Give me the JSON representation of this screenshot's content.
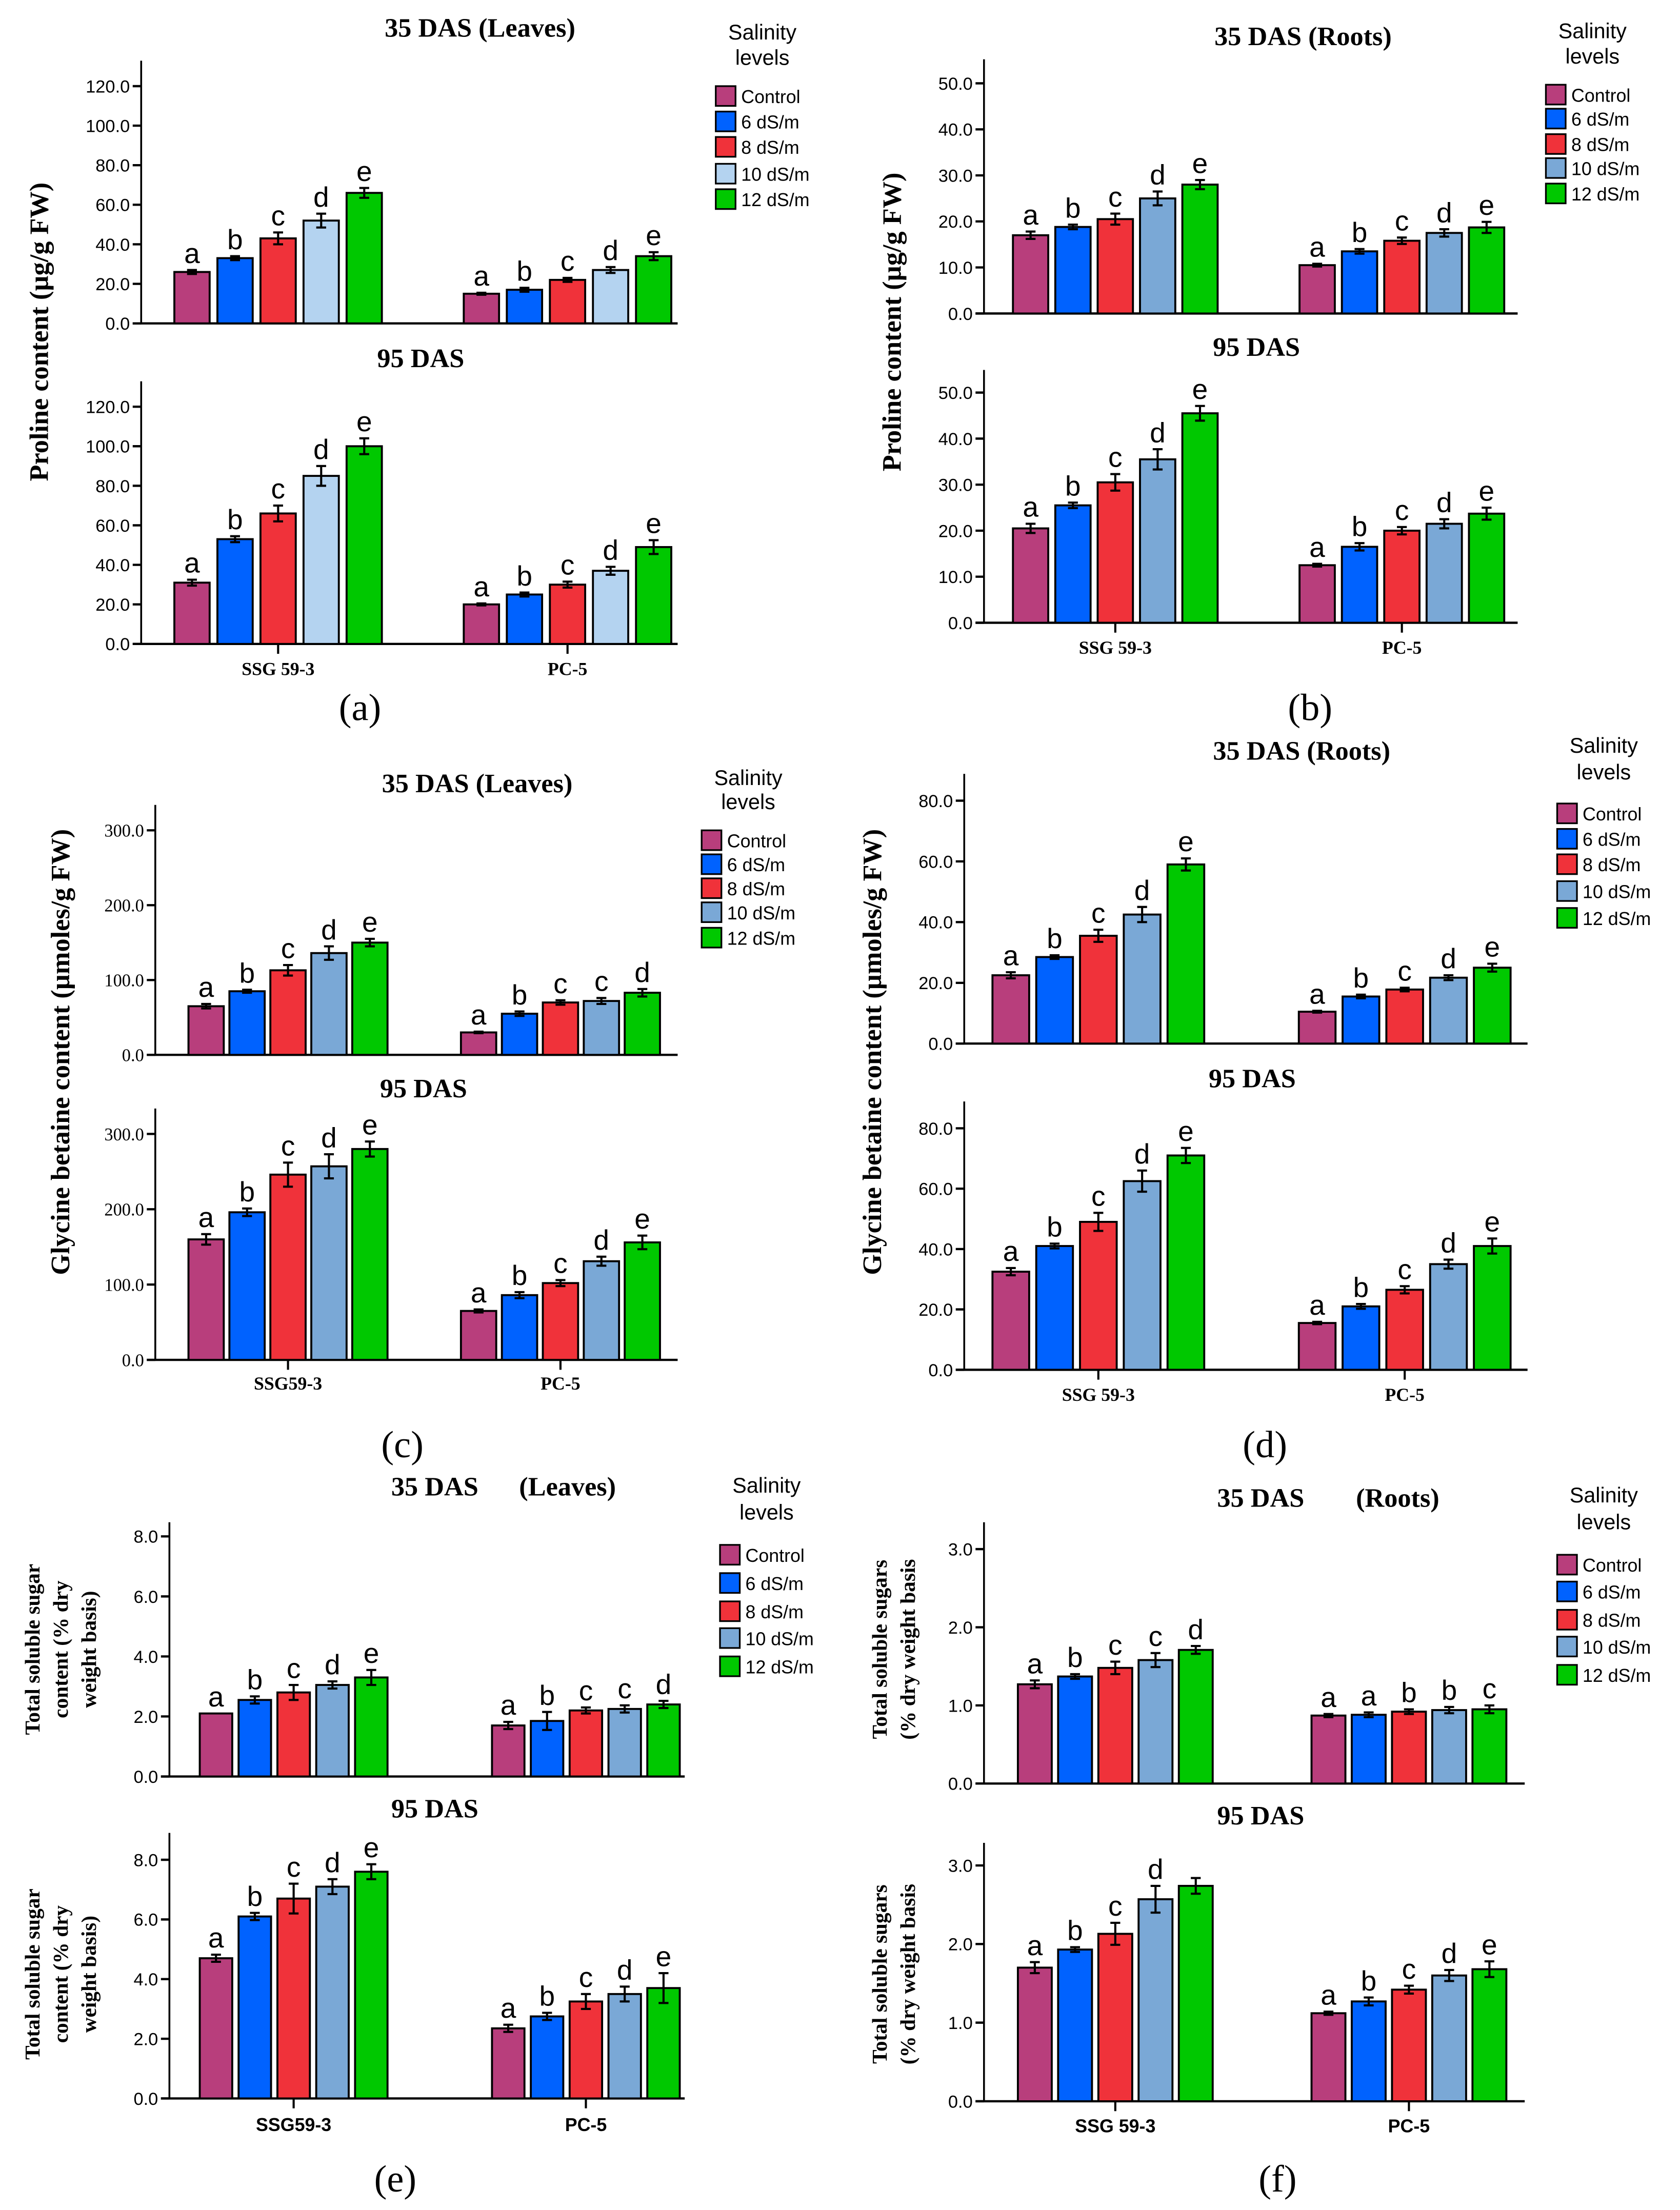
{
  "chart_data": [
    {
      "type": "bar",
      "label": "(a)",
      "ylabel": [
        "Proline content (µg/g FW)"
      ],
      "categories": [
        "SSG 59-3",
        "PC-5"
      ],
      "legend_title": [
        "Salinity",
        "levels"
      ],
      "legend": [
        "Control",
        "6 dS/m",
        "8 dS/m",
        "10 dS/m",
        "12 dS/m"
      ],
      "colors": [
        "#B83E7C",
        "#0062FF",
        "#F0323A",
        "#B4D3F0",
        "#00C800"
      ],
      "charts": [
        {
          "title": "35 DAS  (Leaves)",
          "ticks": [
            "0.0",
            "20.0",
            "40.0",
            "60.0",
            "80.0",
            "100.0",
            "120.0"
          ],
          "tick_values": [
            0,
            20,
            40,
            60,
            80,
            100,
            120
          ],
          "values": [
            [
              26,
              33,
              43,
              52,
              66
            ],
            [
              15,
              17,
              22,
              27,
              34
            ]
          ],
          "err": [
            [
              1,
              1,
              3,
              3.5,
              2.5
            ],
            [
              0.5,
              1,
              1,
              1.5,
              2
            ]
          ],
          "letters": [
            [
              "a",
              "b",
              "c",
              "d",
              "e"
            ],
            [
              "a",
              "b",
              "c",
              "d",
              "e"
            ]
          ]
        },
        {
          "title": "95 DAS",
          "ticks": [
            "0.0",
            "20.0",
            "40.0",
            "60.0",
            "80.0",
            "100.0",
            "120.0"
          ],
          "tick_values": [
            0,
            20,
            40,
            60,
            80,
            100,
            120
          ],
          "values": [
            [
              31,
              53,
              66,
              85,
              100
            ],
            [
              20,
              25,
              30,
              37,
              49
            ]
          ],
          "err": [
            [
              1.5,
              1.5,
              4,
              5,
              4
            ],
            [
              0.5,
              1,
              1.5,
              2,
              3.5
            ]
          ],
          "letters": [
            [
              "a",
              "b",
              "c",
              "d",
              "e"
            ],
            [
              "a",
              "b",
              "c",
              "d",
              "e"
            ]
          ]
        }
      ]
    },
    {
      "type": "bar",
      "label": "(b)",
      "ylabel": [
        "Proline content (µg/g FW)"
      ],
      "categories": [
        "SSG 59-3",
        "PC-5"
      ],
      "legend_title": [
        "Salinity",
        "levels"
      ],
      "legend": [
        "Control",
        "6 dS/m",
        "8 dS/m",
        "10 dS/m",
        "12 dS/m"
      ],
      "colors": [
        "#B83E7C",
        "#0062FF",
        "#F0323A",
        "#7AA8D6",
        "#00C800"
      ],
      "charts": [
        {
          "title": "35 DAS (Roots)",
          "ticks": [
            "0.0",
            "10.0",
            "20.0",
            "30.0",
            "40.0",
            "50.0"
          ],
          "tick_values": [
            0,
            10,
            20,
            30,
            40,
            50
          ],
          "values": [
            [
              17,
              18.8,
              20.5,
              25,
              28
            ],
            [
              10.5,
              13.5,
              15.8,
              17.5,
              18.7
            ]
          ],
          "err": [
            [
              0.8,
              0.5,
              1.2,
              1.5,
              1
            ],
            [
              0.3,
              0.5,
              0.7,
              0.8,
              1.2
            ]
          ],
          "letters": [
            [
              "a",
              "b",
              "c",
              "d",
              "e"
            ],
            [
              "a",
              "b",
              "c",
              "d",
              "e"
            ]
          ]
        },
        {
          "title": "95 DAS",
          "ticks": [
            "0.0",
            "10.0",
            "20.0",
            "30.0",
            "40.0",
            "50.0"
          ],
          "tick_values": [
            0,
            10,
            20,
            30,
            40,
            50
          ],
          "values": [
            [
              20.5,
              25.5,
              30.5,
              35.5,
              45.5
            ],
            [
              12.5,
              16.5,
              20,
              21.5,
              23.7
            ]
          ],
          "err": [
            [
              1,
              0.6,
              1.8,
              2.2,
              1.6
            ],
            [
              0.3,
              0.8,
              0.8,
              1,
              1.3
            ]
          ],
          "letters": [
            [
              "a",
              "b",
              "c",
              "d",
              "e"
            ],
            [
              "a",
              "b",
              "c",
              "d",
              "e"
            ]
          ]
        }
      ]
    },
    {
      "type": "bar",
      "label": "(c)",
      "ylabel": [
        "Glycine betaine content  (µmoles/g FW)"
      ],
      "categories": [
        "SSG59-3",
        "PC-5"
      ],
      "legend_title": [
        "Salinity",
        "levels"
      ],
      "legend": [
        "Control",
        "6 dS/m",
        "8 dS/m",
        "10 dS/m",
        "12 dS/m"
      ],
      "colors": [
        "#B83E7C",
        "#0062FF",
        "#F0323A",
        "#7AA8D6",
        "#00C800"
      ],
      "charts": [
        {
          "title": "35 DAS  (Leaves)",
          "ticks": [
            "0.0",
            "100.0",
            "200.0",
            "300.0"
          ],
          "tick_values": [
            0,
            100,
            200,
            300
          ],
          "values": [
            [
              65,
              85,
              113,
              136,
              150
            ],
            [
              30,
              55,
              70,
              72,
              83
            ]
          ],
          "err": [
            [
              3,
              2,
              7,
              9,
              5
            ],
            [
              1,
              3,
              3,
              4,
              5
            ]
          ],
          "letters": [
            [
              "a",
              "b",
              "c",
              "d",
              "e"
            ],
            [
              "a",
              "b",
              "c",
              "c",
              "d"
            ]
          ]
        },
        {
          "title": "95 DAS",
          "ticks": [
            "0.0",
            "100.0",
            "200.0",
            "300.0"
          ],
          "tick_values": [
            0,
            100,
            200,
            300
          ],
          "values": [
            [
              160,
              196,
              246,
              257,
              280
            ],
            [
              65,
              86,
              102,
              131,
              156
            ]
          ],
          "err": [
            [
              7,
              5,
              16,
              16,
              10
            ],
            [
              2,
              4,
              4,
              6,
              9
            ]
          ],
          "letters": [
            [
              "a",
              "b",
              "c",
              "d",
              "e"
            ],
            [
              "a",
              "b",
              "c",
              "d",
              "e"
            ]
          ]
        }
      ]
    },
    {
      "type": "bar",
      "label": "(d)",
      "ylabel": [
        "Glycine betaine content (µmoles/g FW)"
      ],
      "categories": [
        "SSG 59-3",
        "PC-5"
      ],
      "legend_title": [
        "Salinity",
        "levels"
      ],
      "legend": [
        "Control",
        "6 dS/m",
        "8 dS/m",
        "10 dS/m",
        "12 dS/m"
      ],
      "colors": [
        "#B83E7C",
        "#0062FF",
        "#F0323A",
        "#7AA8D6",
        "#00C800"
      ],
      "charts": [
        {
          "title": "35 DAS (Roots)",
          "ticks": [
            "0.0",
            "20.0",
            "40.0",
            "60.0",
            "80.0"
          ],
          "tick_values": [
            0,
            20,
            40,
            60,
            80
          ],
          "values": [
            [
              22.5,
              28.5,
              35.5,
              42.5,
              59
            ],
            [
              10.5,
              15.5,
              17.8,
              21.7,
              25
            ]
          ],
          "err": [
            [
              1,
              0.6,
              2,
              2.5,
              2
            ],
            [
              0.3,
              0.6,
              0.6,
              0.8,
              1.3
            ]
          ],
          "letters": [
            [
              "a",
              "b",
              "c",
              "d",
              "e"
            ],
            [
              "a",
              "b",
              "c",
              "d",
              "e"
            ]
          ]
        },
        {
          "title": "95 DAS",
          "ticks": [
            "0.0",
            "20.0",
            "40.0",
            "60.0",
            "80.0"
          ],
          "tick_values": [
            0,
            20,
            40,
            60,
            80
          ],
          "values": [
            [
              32.5,
              41,
              49,
              62.5,
              71
            ],
            [
              15.5,
              21,
              26.5,
              35,
              41
            ]
          ],
          "err": [
            [
              1.2,
              0.8,
              3,
              3.5,
              2.5
            ],
            [
              0.4,
              0.8,
              1.2,
              1.5,
              2.5
            ]
          ],
          "letters": [
            [
              "a",
              "b",
              "c",
              "d",
              "e"
            ],
            [
              "a",
              "b",
              "c",
              "d",
              "e"
            ]
          ]
        }
      ]
    },
    {
      "type": "bar",
      "label": "(e)",
      "ylabel": [
        "Total soluble sugar",
        "content (% dry",
        "weight basis)"
      ],
      "categories": [
        "SSG59-3",
        "PC-5"
      ],
      "legend_title": [
        "Salinity",
        "levels"
      ],
      "legend": [
        "Control",
        "6 dS/m",
        "8 dS/m",
        "10 dS/m",
        "12 dS/m"
      ],
      "colors": [
        "#B83E7C",
        "#0062FF",
        "#F0323A",
        "#7AA8D6",
        "#00C800"
      ],
      "charts": [
        {
          "title": "35 DAS",
          "title_part2": "(Leaves)",
          "ticks": [
            "0.0",
            "2.0",
            "4.0",
            "6.0",
            "8.0"
          ],
          "tick_values": [
            0,
            2,
            4,
            6,
            8
          ],
          "values": [
            [
              2.1,
              2.55,
              2.8,
              3.05,
              3.3
            ],
            [
              1.7,
              1.85,
              2.2,
              2.25,
              2.4
            ]
          ],
          "err": [
            [
              0,
              0.12,
              0.25,
              0.12,
              0.25
            ],
            [
              0.12,
              0.3,
              0.1,
              0.12,
              0.12
            ]
          ],
          "letters": [
            [
              "a",
              "b",
              "c",
              "d",
              "e"
            ],
            [
              "a",
              "b",
              "c",
              "c",
              "d"
            ]
          ]
        },
        {
          "title": "95 DAS",
          "ticks": [
            "0.0",
            "2.0",
            "4.0",
            "6.0",
            "8.0"
          ],
          "tick_values": [
            0,
            2,
            4,
            6,
            8
          ],
          "values": [
            [
              4.7,
              6.1,
              6.7,
              7.1,
              7.6
            ],
            [
              2.35,
              2.75,
              3.25,
              3.5,
              3.7
            ]
          ],
          "err": [
            [
              0.12,
              0.12,
              0.5,
              0.25,
              0.25
            ],
            [
              0.12,
              0.12,
              0.25,
              0.25,
              0.5
            ]
          ],
          "letters": [
            [
              "a",
              "b",
              "c",
              "d",
              "e"
            ],
            [
              "a",
              "b",
              "c",
              "d",
              "e"
            ]
          ]
        }
      ]
    },
    {
      "type": "bar",
      "label": "(f)",
      "ylabel": [
        "Total soluble sugars",
        "(% dry weight basis"
      ],
      "categories": [
        "SSG 59-3",
        "PC-5"
      ],
      "legend_title": [
        "Salinity",
        "levels"
      ],
      "legend": [
        "Control",
        "6 dS/m",
        "8 dS/m",
        "10 dS/m",
        "12 dS/m"
      ],
      "colors": [
        "#B83E7C",
        "#0062FF",
        "#F0323A",
        "#7AA8D6",
        "#00C800"
      ],
      "charts": [
        {
          "title": "35 DAS",
          "title_part2": "(Roots)",
          "ticks": [
            "0.0",
            "1.0",
            "2.0",
            "3.0"
          ],
          "tick_values": [
            0,
            1,
            2,
            3
          ],
          "values": [
            [
              1.27,
              1.37,
              1.48,
              1.58,
              1.71
            ],
            [
              0.87,
              0.88,
              0.92,
              0.94,
              0.95
            ]
          ],
          "err": [
            [
              0.05,
              0.03,
              0.08,
              0.09,
              0.05
            ],
            [
              0.02,
              0.03,
              0.03,
              0.04,
              0.05
            ]
          ],
          "letters": [
            [
              "a",
              "b",
              "c",
              "c",
              "d"
            ],
            [
              "a",
              "a",
              "b",
              "b",
              "c"
            ]
          ]
        },
        {
          "title": "95 DAS",
          "ticks": [
            "0.0",
            "1.0",
            "2.0",
            "3.0"
          ],
          "tick_values": [
            0,
            1,
            2,
            3
          ],
          "values": [
            [
              1.7,
              1.93,
              2.13,
              2.57,
              2.74
            ],
            [
              1.12,
              1.27,
              1.42,
              1.6,
              1.68
            ]
          ],
          "err": [
            [
              0.07,
              0.03,
              0.14,
              0.17,
              0.1
            ],
            [
              0.02,
              0.05,
              0.05,
              0.07,
              0.1
            ]
          ],
          "letters": [
            [
              "a",
              "b",
              "c",
              "d",
              ""
            ],
            [
              "a",
              "b",
              "c",
              "d",
              "e"
            ]
          ]
        }
      ]
    }
  ]
}
